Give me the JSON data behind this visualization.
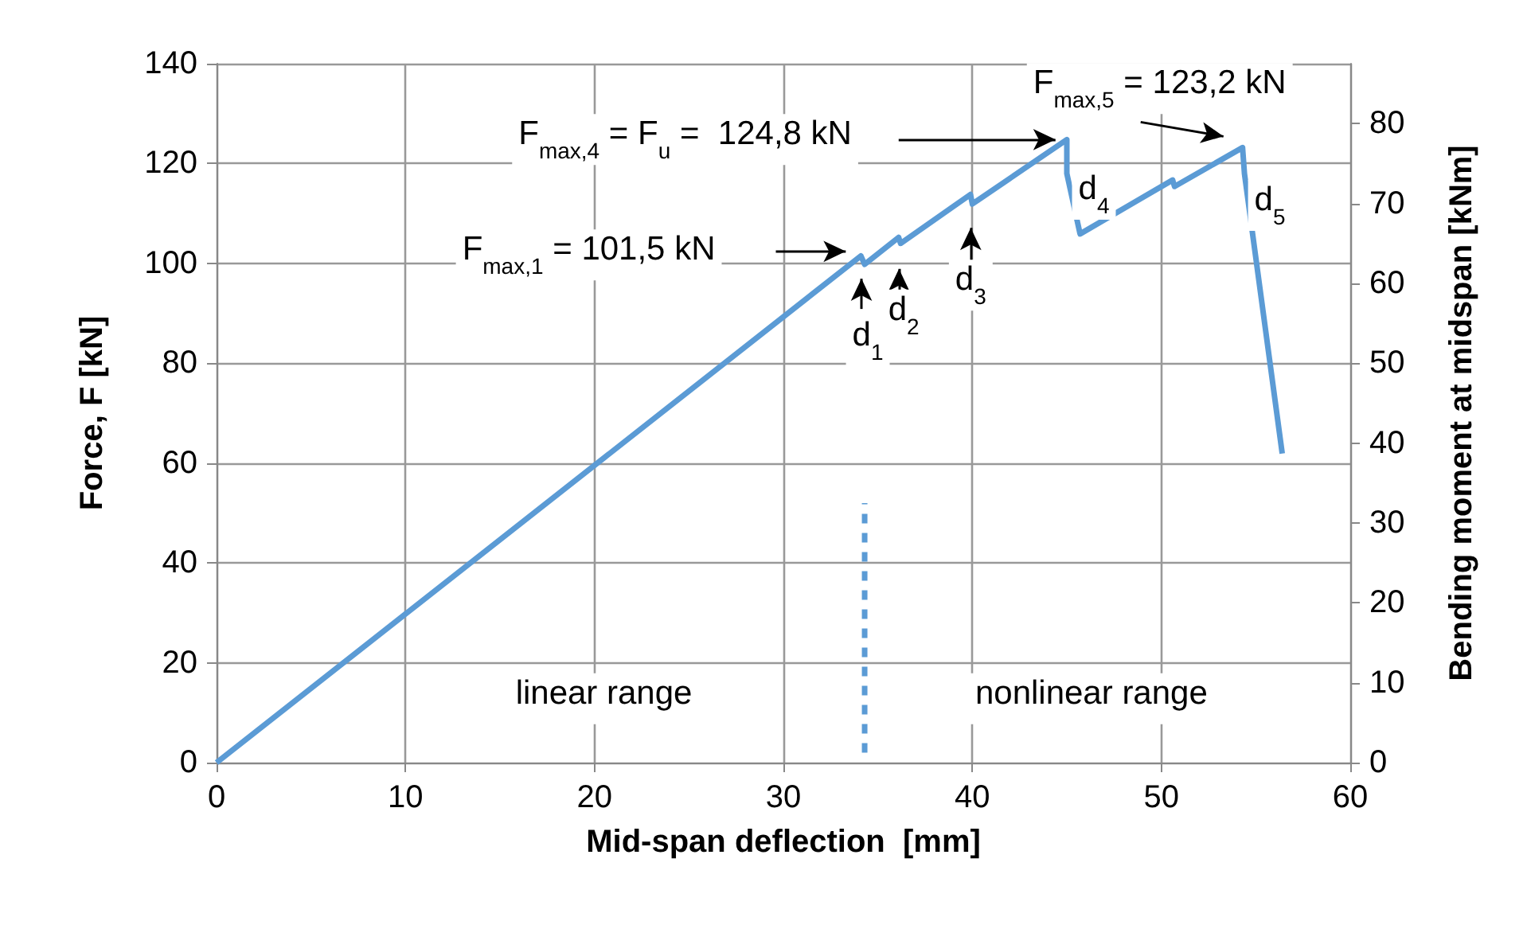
{
  "chart_data": {
    "type": "line",
    "xlabel": "Mid-span deflection  [mm]",
    "ylabel": "Force, F [kN]",
    "y2label": "Bending moment at midspan [kNm]",
    "xlim": [
      0,
      60
    ],
    "xticks": [
      0,
      10,
      20,
      30,
      40,
      50,
      60
    ],
    "ylim": [
      0,
      140
    ],
    "yticks": [
      0,
      20,
      40,
      60,
      80,
      100,
      120,
      140
    ],
    "y2lim": [
      0,
      87.5
    ],
    "y2ticks": [
      0,
      10,
      20,
      30,
      40,
      50,
      60,
      70,
      80
    ],
    "grid": true,
    "series": [
      {
        "color": "#5b9bd5",
        "line_style": "solid",
        "x": [
          0,
          34.1,
          34.3,
          36.1,
          36.2,
          39.9,
          40.0,
          45.0,
          45.0,
          45.7,
          50.6,
          50.7,
          54.3,
          54.4,
          56.4
        ],
        "values": [
          0,
          101.5,
          99.8,
          105.2,
          104.0,
          113.8,
          111.9,
          124.8,
          118.0,
          105.9,
          116.7,
          115.4,
          123.2,
          118.0,
          61.9
        ]
      },
      {
        "color": "#5b9bd5",
        "line_style": "dashed",
        "x": [
          34.3,
          34.3
        ],
        "values": [
          2,
          52
        ]
      }
    ],
    "annotations": [
      "F$_{max,1}$ = 101,5 kN",
      "F$_{max,4}$ = F$_{u}$ =  124,8 kN",
      {
        "text": "F$_{max,5}$ = 123,2 kN",
        "x": 54.3,
        "y": 123.2
      },
      {
        "text": "d$_{1}$",
        "x": 34.3,
        "y": 99.8
      },
      {
        "text": "d$_{2}$",
        "x": 36.2,
        "y": 104.0
      },
      {
        "text": "d$_{3}$",
        "x": 40.0,
        "y": 111.9
      },
      {
        "text": "d$_{4}$",
        "x": 45.0,
        "y": 118.0
      },
      {
        "text": "d$_{5}$",
        "x": 54.4,
        "y": 118.0
      },
      "linear range",
      "nonlinear range"
    ]
  }
}
